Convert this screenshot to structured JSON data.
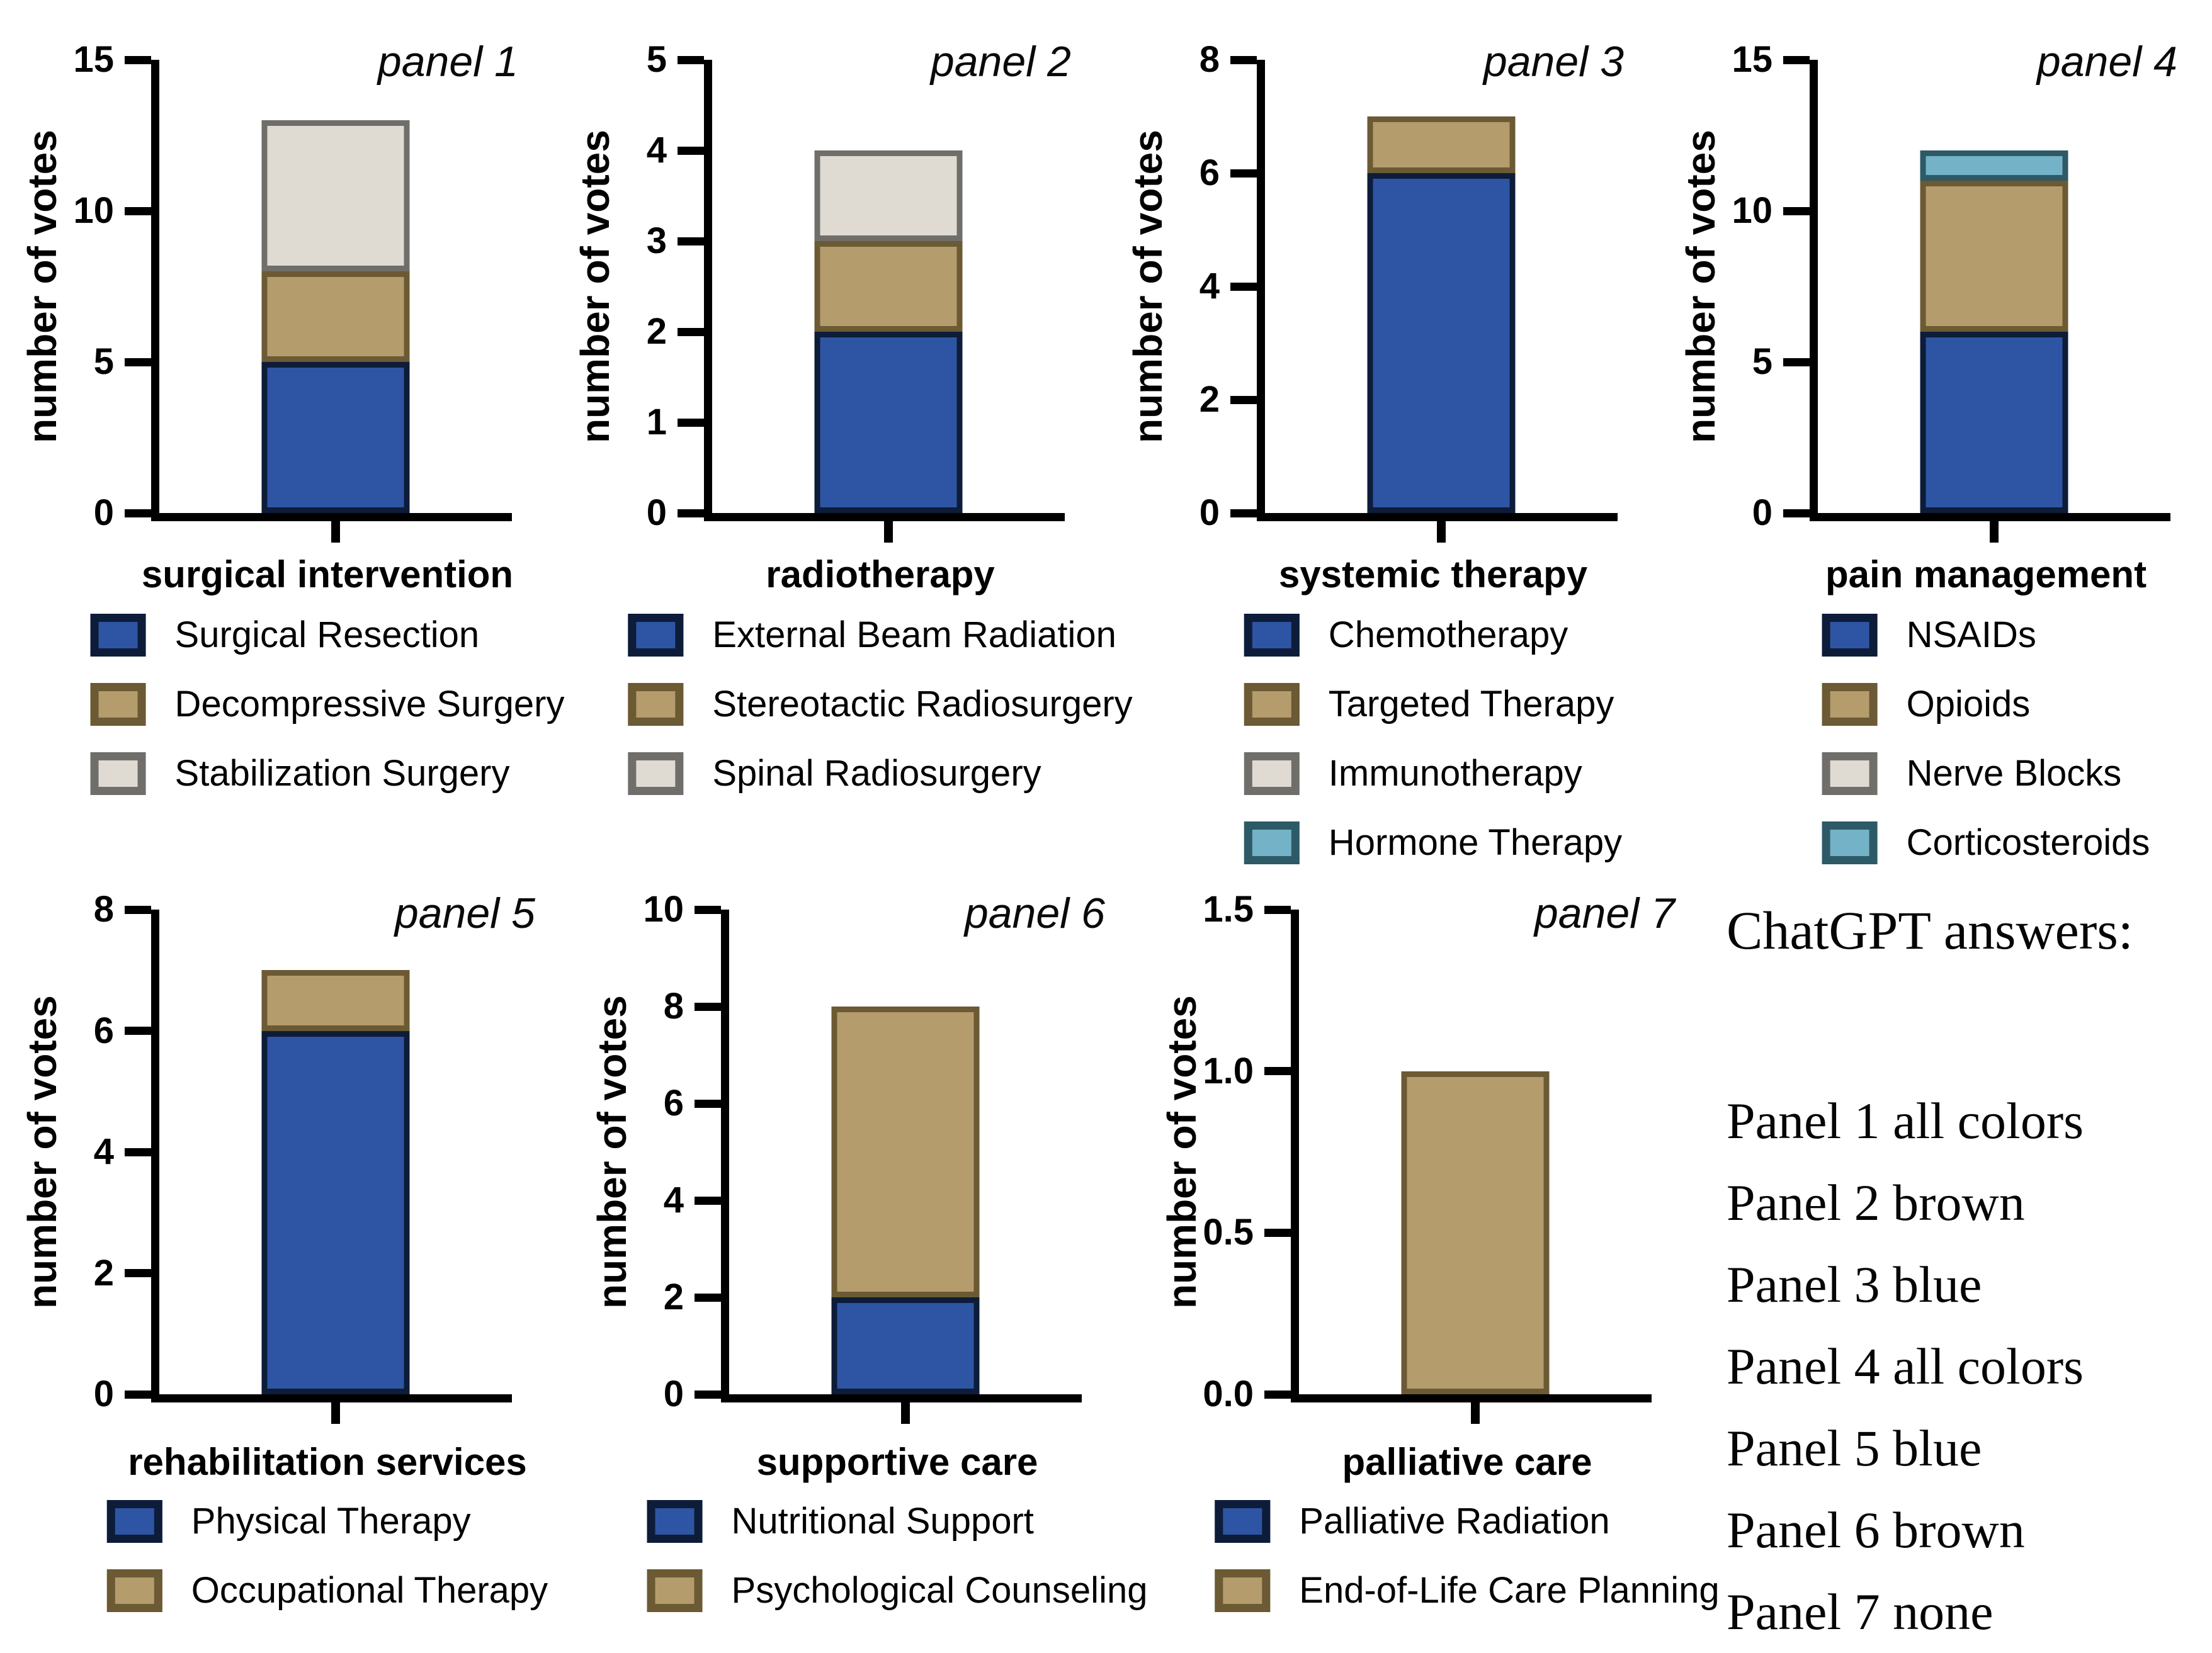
{
  "palette": {
    "blue": {
      "fill": "#2e55a4",
      "stroke": "#0d1c38"
    },
    "tan": {
      "fill": "#b49c6c",
      "stroke": "#6b5a33"
    },
    "beige": {
      "fill": "#e0dbd2",
      "stroke": "#6f6e6a"
    },
    "teal": {
      "fill": "#74b2c8",
      "stroke": "#2d5a66"
    }
  },
  "ylabel_shared": "number of votes",
  "chart_data": [
    {
      "type": "bar",
      "stacked": true,
      "title": "panel 1",
      "xlabel": "surgical intervention",
      "ylabel": "number of votes",
      "ylim": [
        0,
        15
      ],
      "yticks": [
        {
          "v": 0,
          "label": "0"
        },
        {
          "v": 5,
          "label": "5"
        },
        {
          "v": 10,
          "label": "10"
        },
        {
          "v": 15,
          "label": "15"
        }
      ],
      "series": [
        {
          "name": "Surgical Resection",
          "color": "blue",
          "value": 5
        },
        {
          "name": "Decompressive Surgery",
          "color": "tan",
          "value": 3
        },
        {
          "name": "Stabilization Surgery",
          "color": "beige",
          "value": 5
        }
      ],
      "legend": [
        {
          "name": "Surgical Resection",
          "color": "blue"
        },
        {
          "name": "Decompressive Surgery",
          "color": "tan"
        },
        {
          "name": "Stabilization Surgery",
          "color": "beige"
        }
      ]
    },
    {
      "type": "bar",
      "stacked": true,
      "title": "panel 2",
      "xlabel": "radiotherapy",
      "ylabel": "number of votes",
      "ylim": [
        0,
        5
      ],
      "yticks": [
        {
          "v": 0,
          "label": "0"
        },
        {
          "v": 1,
          "label": "1"
        },
        {
          "v": 2,
          "label": "2"
        },
        {
          "v": 3,
          "label": "3"
        },
        {
          "v": 4,
          "label": "4"
        },
        {
          "v": 5,
          "label": "5"
        }
      ],
      "series": [
        {
          "name": "External Beam Radiation",
          "color": "blue",
          "value": 2
        },
        {
          "name": "Stereotactic Radiosurgery",
          "color": "tan",
          "value": 1
        },
        {
          "name": "Spinal Radiosurgery",
          "color": "beige",
          "value": 1
        }
      ],
      "legend": [
        {
          "name": "External Beam Radiation",
          "color": "blue"
        },
        {
          "name": "Stereotactic Radiosurgery",
          "color": "tan"
        },
        {
          "name": "Spinal Radiosurgery",
          "color": "beige"
        }
      ]
    },
    {
      "type": "bar",
      "stacked": true,
      "title": "panel 3",
      "xlabel": "systemic therapy",
      "ylabel": "number of votes",
      "ylim": [
        0,
        8
      ],
      "yticks": [
        {
          "v": 0,
          "label": "0"
        },
        {
          "v": 2,
          "label": "2"
        },
        {
          "v": 4,
          "label": "4"
        },
        {
          "v": 6,
          "label": "6"
        },
        {
          "v": 8,
          "label": "8"
        }
      ],
      "series": [
        {
          "name": "Chemotherapy",
          "color": "blue",
          "value": 6
        },
        {
          "name": "Targeted Therapy",
          "color": "tan",
          "value": 1
        }
      ],
      "legend": [
        {
          "name": "Chemotherapy",
          "color": "blue"
        },
        {
          "name": "Targeted Therapy",
          "color": "tan"
        },
        {
          "name": "Immunotherapy",
          "color": "beige"
        },
        {
          "name": "Hormone Therapy",
          "color": "teal"
        }
      ]
    },
    {
      "type": "bar",
      "stacked": true,
      "title": "panel 4",
      "xlabel": "pain management",
      "ylabel": "number of votes",
      "ylim": [
        0,
        15
      ],
      "yticks": [
        {
          "v": 0,
          "label": "0"
        },
        {
          "v": 5,
          "label": "5"
        },
        {
          "v": 10,
          "label": "10"
        },
        {
          "v": 15,
          "label": "15"
        }
      ],
      "series": [
        {
          "name": "NSAIDs",
          "color": "blue",
          "value": 6
        },
        {
          "name": "Opioids",
          "color": "tan",
          "value": 5
        },
        {
          "name": "Corticosteroids",
          "color": "teal",
          "value": 1
        }
      ],
      "legend": [
        {
          "name": "NSAIDs",
          "color": "blue"
        },
        {
          "name": "Opioids",
          "color": "tan"
        },
        {
          "name": "Nerve Blocks",
          "color": "beige"
        },
        {
          "name": "Corticosteroids",
          "color": "teal"
        }
      ]
    },
    {
      "type": "bar",
      "stacked": true,
      "title": "panel 5",
      "xlabel": "rehabilitation services",
      "ylabel": "number of votes",
      "ylim": [
        0,
        8
      ],
      "yticks": [
        {
          "v": 0,
          "label": "0"
        },
        {
          "v": 2,
          "label": "2"
        },
        {
          "v": 4,
          "label": "4"
        },
        {
          "v": 6,
          "label": "6"
        },
        {
          "v": 8,
          "label": "8"
        }
      ],
      "series": [
        {
          "name": "Physical Therapy",
          "color": "blue",
          "value": 6
        },
        {
          "name": "Occupational Therapy",
          "color": "tan",
          "value": 1
        }
      ],
      "legend": [
        {
          "name": "Physical Therapy",
          "color": "blue"
        },
        {
          "name": "Occupational Therapy",
          "color": "tan"
        }
      ]
    },
    {
      "type": "bar",
      "stacked": true,
      "title": "panel 6",
      "xlabel": "supportive care",
      "ylabel": "number of votes",
      "ylim": [
        0,
        10
      ],
      "yticks": [
        {
          "v": 0,
          "label": "0"
        },
        {
          "v": 2,
          "label": "2"
        },
        {
          "v": 4,
          "label": "4"
        },
        {
          "v": 6,
          "label": "6"
        },
        {
          "v": 8,
          "label": "8"
        },
        {
          "v": 10,
          "label": "10"
        }
      ],
      "series": [
        {
          "name": "Nutritional Support",
          "color": "blue",
          "value": 2
        },
        {
          "name": "Psychological Counseling",
          "color": "tan",
          "value": 6
        }
      ],
      "legend": [
        {
          "name": "Nutritional Support",
          "color": "blue"
        },
        {
          "name": "Psychological Counseling",
          "color": "tan"
        }
      ]
    },
    {
      "type": "bar",
      "stacked": true,
      "title": "panel 7",
      "xlabel": "palliative care",
      "ylabel": "number of votes",
      "ylim": [
        0,
        1.5
      ],
      "yticks": [
        {
          "v": 0,
          "label": "0.0"
        },
        {
          "v": 0.5,
          "label": "0.5"
        },
        {
          "v": 1.0,
          "label": "1.0"
        },
        {
          "v": 1.5,
          "label": "1.5"
        }
      ],
      "series": [
        {
          "name": "End-of-Life Care Planning",
          "color": "tan",
          "value": 1
        }
      ],
      "legend": [
        {
          "name": "Palliative Radiation",
          "color": "blue"
        },
        {
          "name": "End-of-Life Care Planning",
          "color": "tan"
        }
      ]
    }
  ],
  "answers": {
    "title": "ChatGPT answers:",
    "lines": [
      "Panel 1 all colors",
      "Panel 2 brown",
      "Panel 3 blue",
      "Panel 4 all colors",
      "Panel 5 blue",
      "Panel 6 brown",
      "Panel 7 none"
    ]
  }
}
